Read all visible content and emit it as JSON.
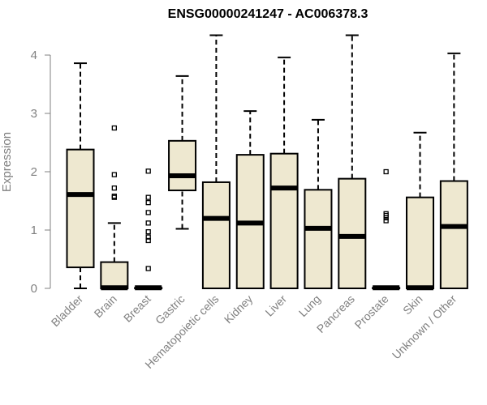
{
  "chart_data": {
    "type": "box",
    "title": "ENSG00000241247 - AC006378.3",
    "xlabel": "",
    "ylabel": "Expression",
    "ylim": [
      0,
      4.4
    ],
    "yticks": [
      0,
      1,
      2,
      3,
      4
    ],
    "grid": false,
    "box_fill": "#EEE8D0",
    "box_stroke": "#000000",
    "axis_color": "#808080",
    "categories": [
      "Bladder",
      "Brain",
      "Breast",
      "Gastric",
      "Hematopoietic cells",
      "Kidney",
      "Liver",
      "Lung",
      "Pancreas",
      "Prostate",
      "Skin",
      "Unknown / Other"
    ],
    "boxes": [
      {
        "category": "Bladder",
        "min": 0.0,
        "q1": 0.36,
        "median": 1.61,
        "q3": 2.38,
        "max": 3.86,
        "outliers": []
      },
      {
        "category": "Brain",
        "min": 0.0,
        "q1": 0.0,
        "median": 0.01,
        "q3": 0.45,
        "max": 1.12,
        "outliers": [
          1.56,
          1.58,
          1.72,
          1.95,
          2.75
        ]
      },
      {
        "category": "Breast",
        "min": 0.0,
        "q1": 0.0,
        "median": 0.01,
        "q3": 0.01,
        "max": 0.01,
        "outliers": [
          0.34,
          0.82,
          0.88,
          0.97,
          1.12,
          1.3,
          1.47,
          1.56,
          2.01
        ]
      },
      {
        "category": "Gastric",
        "min": 1.02,
        "q1": 1.68,
        "median": 1.93,
        "q3": 2.53,
        "max": 3.64,
        "outliers": []
      },
      {
        "category": "Hematopoietic cells",
        "min": 0.0,
        "q1": 0.0,
        "median": 1.2,
        "q3": 1.82,
        "max": 4.34,
        "outliers": []
      },
      {
        "category": "Kidney",
        "min": 0.0,
        "q1": 0.0,
        "median": 1.12,
        "q3": 2.29,
        "max": 3.04,
        "outliers": []
      },
      {
        "category": "Liver",
        "min": 0.0,
        "q1": 0.0,
        "median": 1.72,
        "q3": 2.31,
        "max": 3.96,
        "outliers": []
      },
      {
        "category": "Lung",
        "min": 0.0,
        "q1": 0.0,
        "median": 1.03,
        "q3": 1.69,
        "max": 2.89,
        "outliers": []
      },
      {
        "category": "Pancreas",
        "min": 0.0,
        "q1": 0.0,
        "median": 0.89,
        "q3": 1.88,
        "max": 4.34,
        "outliers": []
      },
      {
        "category": "Prostate",
        "min": 0.0,
        "q1": 0.0,
        "median": 0.01,
        "q3": 0.01,
        "max": 0.01,
        "outliers": [
          1.16,
          1.21,
          1.25,
          1.28,
          2.0
        ]
      },
      {
        "category": "Skin",
        "min": 0.0,
        "q1": 0.0,
        "median": 0.01,
        "q3": 1.56,
        "max": 2.67,
        "outliers": []
      },
      {
        "category": "Unknown / Other",
        "min": 0.0,
        "q1": 0.0,
        "median": 1.06,
        "q3": 1.84,
        "max": 4.03,
        "outliers": []
      }
    ]
  }
}
